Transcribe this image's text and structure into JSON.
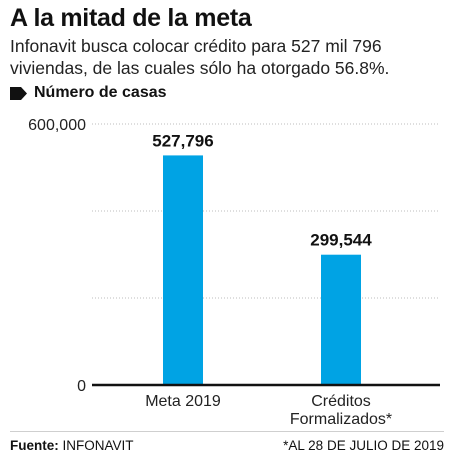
{
  "header": {
    "title": "A la mitad de la meta",
    "subtitle": "Infonavit busca colocar crédito para 527 mil 796 viviendas, de las cuales sólo ha otorgado 56.8%."
  },
  "legend": {
    "label": "Número de casas"
  },
  "chart_data": {
    "type": "bar",
    "categories": [
      "Meta 2019",
      "Créditos Formalizados*"
    ],
    "category_lines": [
      [
        "Meta 2019"
      ],
      [
        "Créditos",
        "Formalizados*"
      ]
    ],
    "values": [
      527796,
      299544
    ],
    "data_labels": [
      "527,796",
      "299,544"
    ],
    "title": "",
    "xlabel": "",
    "ylabel": "",
    "ylim": [
      0,
      600000
    ],
    "yticks": [
      0,
      200000,
      400000,
      600000
    ],
    "ytick_labels": [
      "0",
      "",
      "",
      "600,000"
    ],
    "grid": true,
    "bar_color": "#00a3e4",
    "grid_color": "#bdbdbd",
    "axis_color": "#111111"
  },
  "footer": {
    "source_label": "Fuente:",
    "source_value": "INFONAVIT",
    "note": "*AL 28 DE JULIO DE 2019"
  }
}
